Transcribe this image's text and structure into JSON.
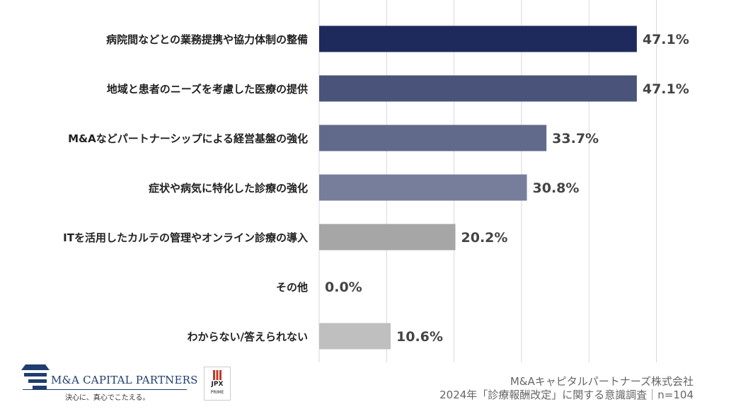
{
  "chart_data": {
    "type": "bar",
    "orientation": "horizontal",
    "categories": [
      "病院間などとの業務提携や協力体制の整備",
      "地域と患者のニーズを考慮した医療の提供",
      "M&Aなどパートナーシップによる経営基盤の強化",
      "症状や病気に特化した診療の強化",
      "ITを活用したカルテの管理やオンライン診療の導入",
      "その他",
      "わからない/答えられない"
    ],
    "values": [
      47.1,
      47.1,
      33.7,
      30.8,
      20.2,
      0.0,
      10.6
    ],
    "value_labels": [
      "47.1%",
      "47.1%",
      "33.7%",
      "30.8%",
      "20.2%",
      "0.0%",
      "10.6%"
    ],
    "bar_colors": [
      "#1f2a5c",
      "#4a5379",
      "#626a8c",
      "#777e9c",
      "#a6a6a6",
      "#a6a6a6",
      "#bfbfbf"
    ],
    "xlim": [
      0,
      50
    ],
    "grid": true
  },
  "footer": {
    "company": "M&Aキャピタルパートナーズ株式会社",
    "survey": "2024年「診療報酬改定」に関する意識調査｜n=104"
  },
  "logo": {
    "name": "M&A CAPITAL PARTNERS",
    "tagline": "決心に、真心でこたえる。",
    "accent": "#1f3d6e"
  },
  "badge": {
    "name": "JPX",
    "sub": "PRIME",
    "accent": "#c0392b"
  }
}
